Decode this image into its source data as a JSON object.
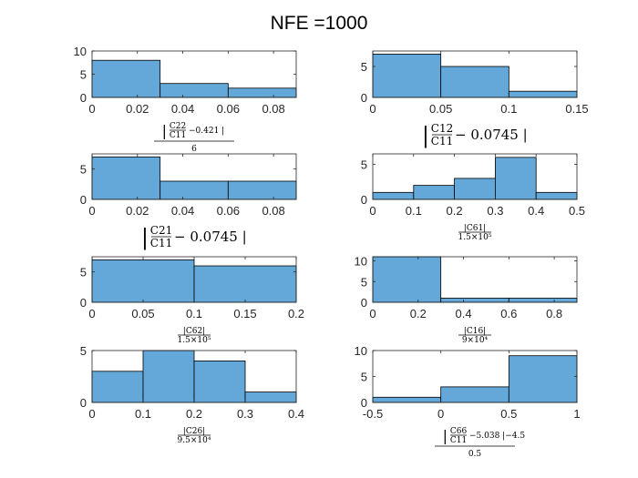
{
  "figure": {
    "title": "NFE =1000",
    "bar_color": "#63a8d8",
    "axes_color": "#262626"
  },
  "chart_data": [
    {
      "type": "bar",
      "edges": [
        0,
        0.03,
        0.06,
        0.09
      ],
      "values": [
        8,
        3,
        2
      ],
      "xlim": [
        0,
        0.09
      ],
      "ylim": [
        0,
        10
      ],
      "xticks": [
        "0",
        "0.02",
        "0.04",
        "0.06",
        "0.08"
      ],
      "yticks": [
        "0",
        "5",
        "10"
      ],
      "xlabel": {
        "lead": "|",
        "num": "C22",
        "den": "C11",
        "tail": "−0.421 |",
        "sub": "6"
      }
    },
    {
      "type": "bar",
      "edges": [
        0,
        0.05,
        0.1,
        0.15
      ],
      "values": [
        7,
        5,
        1
      ],
      "xlim": [
        0,
        0.15
      ],
      "ylim": [
        0,
        7.5
      ],
      "xticks": [
        "0",
        "0.05",
        "0.1",
        "0.15"
      ],
      "yticks": [
        "0",
        "5"
      ],
      "xlabel": {
        "lead": "|",
        "num": "C12",
        "den": "C11",
        "tail": "− 0.0745 |"
      }
    },
    {
      "type": "bar",
      "edges": [
        0,
        0.03,
        0.06,
        0.09
      ],
      "values": [
        7,
        3,
        3
      ],
      "xlim": [
        0,
        0.09
      ],
      "ylim": [
        0,
        7.5
      ],
      "xticks": [
        "0",
        "0.02",
        "0.04",
        "0.06",
        "0.08"
      ],
      "yticks": [
        "0",
        "5"
      ],
      "xlabel": {
        "lead": "|",
        "num": "C21",
        "den": "C11",
        "tail": "− 0.0745 |"
      }
    },
    {
      "type": "bar",
      "edges": [
        0,
        0.1,
        0.2,
        0.3,
        0.4,
        0.5
      ],
      "values": [
        1,
        2,
        3,
        6,
        1
      ],
      "xlim": [
        0,
        0.5
      ],
      "ylim": [
        0,
        6.5
      ],
      "xticks": [
        "0",
        "0.1",
        "0.2",
        "0.3",
        "0.4",
        "0.5"
      ],
      "yticks": [
        "0",
        "5"
      ],
      "xlabel": {
        "num": "|C61|",
        "den": "1.5×10⁵"
      }
    },
    {
      "type": "bar",
      "edges": [
        0,
        0.1,
        0.2
      ],
      "values": [
        7,
        6
      ],
      "xlim": [
        0,
        0.2
      ],
      "ylim": [
        0,
        7.5
      ],
      "xticks": [
        "0",
        "0.05",
        "0.1",
        "0.15",
        "0.2"
      ],
      "yticks": [
        "0",
        "5"
      ],
      "xlabel": {
        "num": "|C62|",
        "den": "1.5×10⁵"
      }
    },
    {
      "type": "bar",
      "edges": [
        0,
        0.3,
        0.6,
        0.9
      ],
      "values": [
        11,
        1,
        1
      ],
      "xlim": [
        0,
        0.9
      ],
      "ylim": [
        0,
        11
      ],
      "xticks": [
        "0",
        "0.2",
        "0.4",
        "0.6",
        "0.8"
      ],
      "yticks": [
        "0",
        "5",
        "10"
      ],
      "xlabel": {
        "num": "|C16|",
        "den": "9×10⁴"
      }
    },
    {
      "type": "bar",
      "edges": [
        0,
        0.1,
        0.2,
        0.3,
        0.4
      ],
      "values": [
        3,
        5,
        4,
        1
      ],
      "xlim": [
        0,
        0.4
      ],
      "ylim": [
        0,
        5
      ],
      "xticks": [
        "0",
        "0.1",
        "0.2",
        "0.3",
        "0.4"
      ],
      "yticks": [
        "0",
        "5"
      ],
      "xlabel": {
        "num": "|C26|",
        "den": "9.5×10⁴"
      }
    },
    {
      "type": "bar",
      "edges": [
        -0.5,
        0,
        0.5,
        1
      ],
      "values": [
        1,
        3,
        9
      ],
      "xlim": [
        -0.5,
        1
      ],
      "ylim": [
        0,
        10
      ],
      "xticks": [
        "-0.5",
        "0",
        "0.5",
        "1"
      ],
      "yticks": [
        "0",
        "5",
        "10"
      ],
      "xlabel": {
        "lead": "|",
        "num": "C66",
        "den": "C11",
        "tail": "−5.038 |−4.5",
        "sub": "0.5"
      }
    }
  ]
}
